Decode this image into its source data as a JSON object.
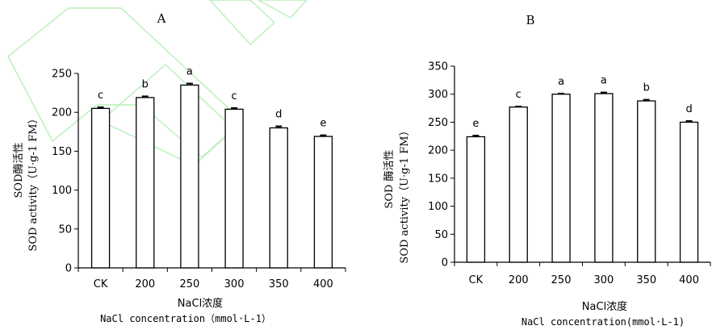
{
  "chart_data": [
    {
      "type": "bar",
      "panel_label": "A",
      "categories": [
        "CK",
        "200",
        "250",
        "300",
        "350",
        "400"
      ],
      "values": [
        205,
        219,
        235,
        204,
        180,
        169
      ],
      "errors": [
        1.5,
        1.5,
        2,
        1.5,
        2,
        1.5
      ],
      "significance": [
        "c",
        "b",
        "a",
        "c",
        "d",
        "e"
      ],
      "ylabel_line1": "SOD酶活性",
      "ylabel_line2": "SOD activity（U·g-1 FM）",
      "xlabel_line1": "NaCl浓度",
      "xlabel_line2": "NaCl concentration（mmol·L-1）",
      "yticks": [
        0,
        50,
        100,
        150,
        200,
        250
      ],
      "ylim": [
        0,
        250
      ]
    },
    {
      "type": "bar",
      "panel_label": "B",
      "categories": [
        "CK",
        "200",
        "250",
        "300",
        "350",
        "400"
      ],
      "values": [
        224,
        277,
        300,
        301,
        288,
        250
      ],
      "errors": [
        2,
        1,
        1,
        2,
        2,
        2
      ],
      "significance": [
        "e",
        "c",
        "a",
        "a",
        "b",
        "d"
      ],
      "ylabel_line1": "SOD 酶活性",
      "ylabel_line2": "SOD activity（U·g-1 FM）",
      "xlabel_line1": "NaCl浓度",
      "xlabel_line2": "NaCl concentration(mmol·L-1)",
      "yticks": [
        0,
        50,
        100,
        150,
        200,
        250,
        300,
        350
      ],
      "ylim": [
        0,
        350
      ]
    }
  ]
}
